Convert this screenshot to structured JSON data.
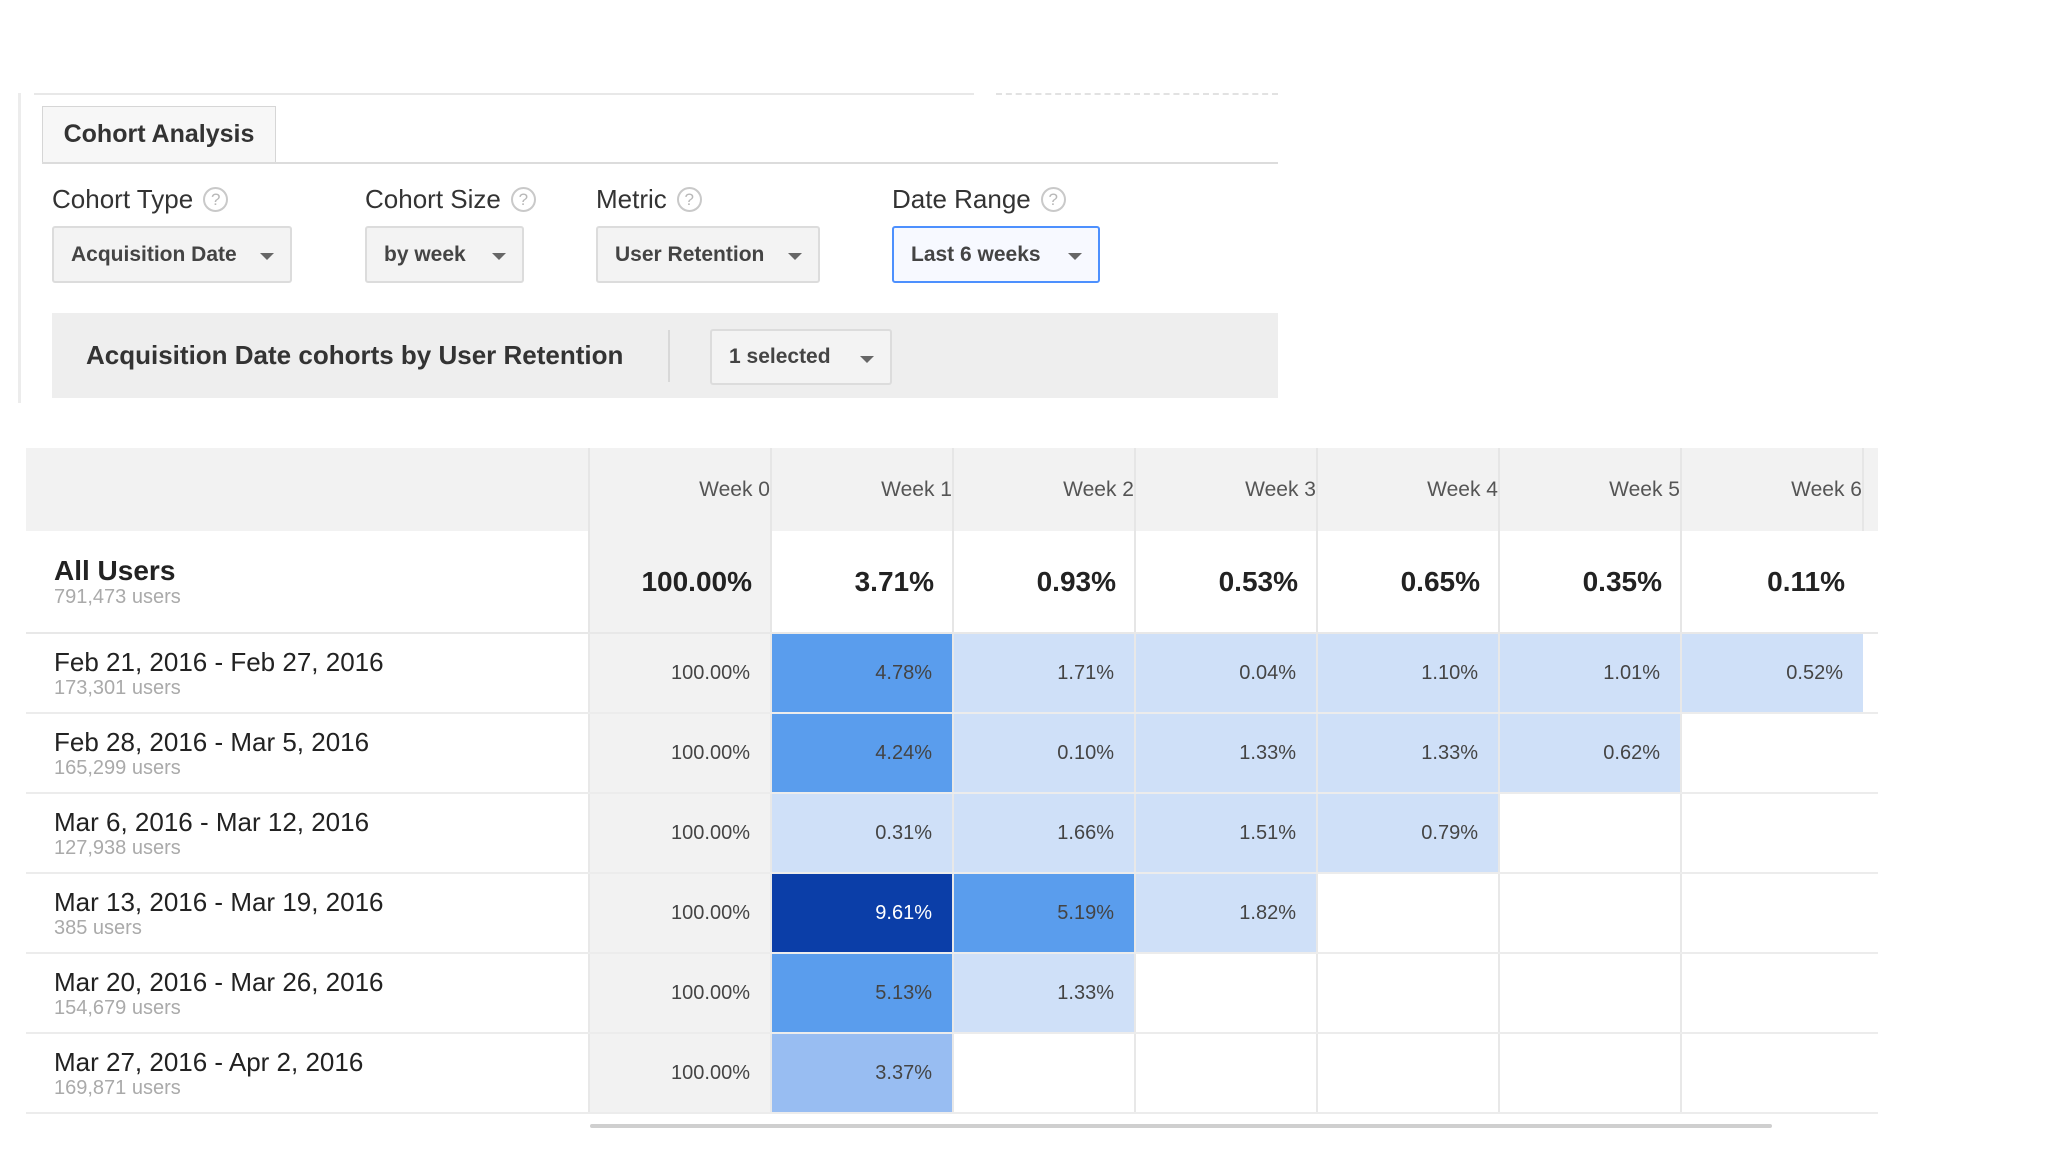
{
  "tab": {
    "label": "Cohort Analysis"
  },
  "controls": {
    "cohort_type": {
      "label": "Cohort Type",
      "value": "Acquisition Date"
    },
    "cohort_size": {
      "label": "Cohort Size",
      "value": "by week"
    },
    "metric": {
      "label": "Metric",
      "value": "User Retention"
    },
    "date_range": {
      "label": "Date Range",
      "value": "Last 6 weeks"
    },
    "help_glyph": "?"
  },
  "cohort_bar": {
    "title": "Acquisition Date cohorts by User Retention",
    "selector": "1 selected"
  },
  "table": {
    "columns": [
      "",
      "Week 0",
      "Week 1",
      "Week 2",
      "Week 3",
      "Week 4",
      "Week 5",
      "Week 6"
    ],
    "all_users": {
      "name": "All Users",
      "users": "791,473 users",
      "values": [
        "100.00%",
        "3.71%",
        "0.93%",
        "0.53%",
        "0.65%",
        "0.35%",
        "0.11%"
      ]
    },
    "rows": [
      {
        "name": "Feb 21, 2016 - Feb 27, 2016",
        "users": "173,301 users",
        "values": [
          "100.00%",
          "4.78%",
          "1.71%",
          "0.04%",
          "1.10%",
          "1.01%",
          "0.52%"
        ],
        "colors": [
          "#f2f2f2",
          "#5a9ded",
          "#cfe0f8",
          "#cfe0f8",
          "#cfe0f8",
          "#cfe0f8",
          "#cfe0f8"
        ]
      },
      {
        "name": "Feb 28, 2016 - Mar 5, 2016",
        "users": "165,299 users",
        "values": [
          "100.00%",
          "4.24%",
          "0.10%",
          "1.33%",
          "1.33%",
          "0.62%",
          ""
        ],
        "colors": [
          "#f2f2f2",
          "#5a9ded",
          "#cfe0f8",
          "#cfe0f8",
          "#cfe0f8",
          "#cfe0f8",
          "#ffffff"
        ]
      },
      {
        "name": "Mar 6, 2016 - Mar 12, 2016",
        "users": "127,938 users",
        "values": [
          "100.00%",
          "0.31%",
          "1.66%",
          "1.51%",
          "0.79%",
          "",
          ""
        ],
        "colors": [
          "#f2f2f2",
          "#cfe0f8",
          "#cfe0f8",
          "#cfe0f8",
          "#cfe0f8",
          "#ffffff",
          "#ffffff"
        ]
      },
      {
        "name": "Mar 13, 2016 - Mar 19, 2016",
        "users": "385 users",
        "values": [
          "100.00%",
          "9.61%",
          "5.19%",
          "1.82%",
          "",
          "",
          ""
        ],
        "colors": [
          "#f2f2f2",
          "#0b3ea8",
          "#5a9ded",
          "#cfe0f8",
          "#ffffff",
          "#ffffff",
          "#ffffff"
        ]
      },
      {
        "name": "Mar 20, 2016 - Mar 26, 2016",
        "users": "154,679 users",
        "values": [
          "100.00%",
          "5.13%",
          "1.33%",
          "",
          "",
          "",
          ""
        ],
        "colors": [
          "#f2f2f2",
          "#5a9ded",
          "#cfe0f8",
          "#ffffff",
          "#ffffff",
          "#ffffff",
          "#ffffff"
        ]
      },
      {
        "name": "Mar 27, 2016 - Apr 2, 2016",
        "users": "169,871 users",
        "values": [
          "100.00%",
          "3.37%",
          "",
          "",
          "",
          "",
          ""
        ],
        "colors": [
          "#f2f2f2",
          "#98bdf2",
          "#ffffff",
          "#ffffff",
          "#ffffff",
          "#ffffff",
          "#ffffff"
        ]
      }
    ]
  }
}
